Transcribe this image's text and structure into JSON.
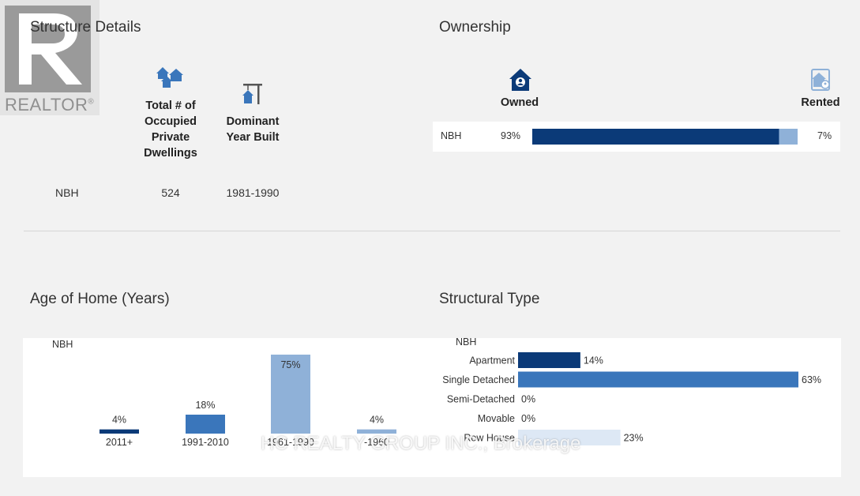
{
  "logo": {
    "text": "REALTOR",
    "mark": "®"
  },
  "structure": {
    "title": "Structure Details",
    "col_dwellings": [
      "Total # of",
      "Occupied",
      "Private",
      "Dwellings"
    ],
    "col_year": [
      "Dominant",
      "Year Built"
    ],
    "row_label": "NBH",
    "dwellings_value": "524",
    "year_value": "1981-1990"
  },
  "ownership": {
    "title": "Ownership",
    "owned_label": "Owned",
    "rented_label": "Rented",
    "row_label": "NBH",
    "owned_pct_label": "93%",
    "rented_pct_label": "7%"
  },
  "watermark": "HC REALTY GROUP INC., Brokerage",
  "colors": {
    "dark": "#0b3a78",
    "mid": "#3a76bb",
    "light": "#8fb1d8",
    "pale": "#dde8f5",
    "icon": "#3a76bb"
  },
  "chart_data": [
    {
      "type": "bar",
      "title": "Ownership",
      "categories": [
        "NBH"
      ],
      "series": [
        {
          "name": "Owned",
          "values": [
            93
          ]
        },
        {
          "name": "Rented",
          "values": [
            7
          ]
        }
      ],
      "unit": "%"
    },
    {
      "type": "bar",
      "title": "Age of Home (Years)",
      "series_label": "NBH",
      "categories": [
        "2011+",
        "1991-2010",
        "1961-1990",
        "-1960"
      ],
      "values": [
        4,
        18,
        75,
        4
      ],
      "labels": [
        "4%",
        "18%",
        "75%",
        "4%"
      ],
      "ylim": [
        0,
        75
      ]
    },
    {
      "type": "bar",
      "orientation": "horizontal",
      "title": "Structural Type",
      "series_label": "NBH",
      "categories": [
        "Apartment",
        "Single Detached",
        "Semi-Detached",
        "Movable",
        "Row House"
      ],
      "values": [
        14,
        63,
        0,
        0,
        23
      ],
      "labels": [
        "14%",
        "63%",
        "0%",
        "0%",
        "23%"
      ],
      "xlim": [
        0,
        63
      ]
    }
  ]
}
